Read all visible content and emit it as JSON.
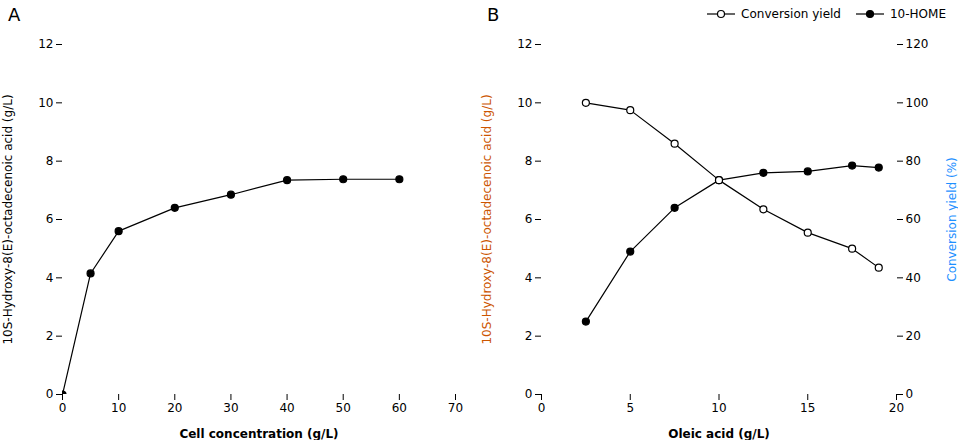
{
  "chart_data": [
    {
      "type": "line",
      "title": "A",
      "x": [
        0,
        5,
        10,
        20,
        30,
        40,
        50,
        60
      ],
      "series": [
        {
          "values": [
            0.0,
            4.15,
            5.6,
            6.4,
            6.85,
            7.35,
            7.38,
            7.38
          ],
          "errors": [
            0.0,
            0.05,
            0.05,
            0.1,
            0.05,
            0.07,
            0.05,
            0.05
          ],
          "color": "#000000",
          "marker": "circle"
        }
      ],
      "xlabel": "Cell concentration (g/L)",
      "ylabel": "10S-Hydroxy-8(E)-octadecenoic acid (g/L)",
      "xlim": [
        0,
        70
      ],
      "xticks": [
        0,
        10,
        20,
        30,
        40,
        50,
        60,
        70
      ],
      "ylim": [
        0,
        12
      ],
      "yticks": [
        0,
        2,
        4,
        6,
        8,
        10,
        12
      ]
    },
    {
      "type": "line",
      "title": "B",
      "x": [
        2.5,
        5,
        7.5,
        10,
        12.5,
        15,
        17.5,
        19
      ],
      "series": [
        {
          "name": "Conversion yield",
          "values": [
            100.0,
            97.5,
            86.0,
            73.5,
            63.5,
            55.5,
            50.0,
            43.5
          ],
          "axis": "y2",
          "color": "#000000",
          "marker": "circle_open"
        },
        {
          "name": "10-HOME",
          "values": [
            2.5,
            4.9,
            6.4,
            7.35,
            7.6,
            7.65,
            7.85,
            7.78
          ],
          "color": "#000000",
          "marker": "circle"
        }
      ],
      "xlabel": "Oleic acid (g/L)",
      "ylabel": "10S-Hydroxy-8(E)-octadecenoic acid (g/L)",
      "ylabel_color": "#cc5500",
      "y2label": "Conversion yield (%)",
      "y2label_color": "#1e90ff",
      "xlim": [
        0,
        20
      ],
      "xticks": [
        0,
        5,
        10,
        15,
        20
      ],
      "ylim": [
        0,
        12
      ],
      "yticks": [
        0,
        2,
        4,
        6,
        8,
        10,
        12
      ],
      "y2lim": [
        0,
        120
      ],
      "y2ticks": [
        0,
        20,
        40,
        60,
        80,
        100,
        120
      ],
      "legend": "upper right"
    }
  ]
}
